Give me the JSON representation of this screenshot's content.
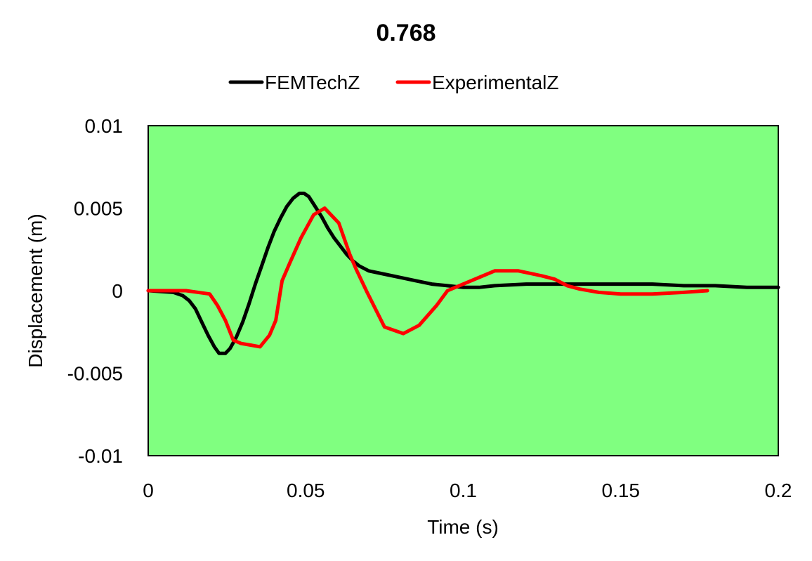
{
  "chart_data": {
    "type": "line",
    "title": "0.768",
    "xlabel": "Time (s)",
    "ylabel": "Displacement (m)",
    "xlim": [
      0,
      0.2
    ],
    "ylim": [
      -0.01,
      0.01
    ],
    "x_ticks": [
      0,
      0.05,
      0.1,
      0.15,
      0.2
    ],
    "x_tick_labels": [
      "0",
      "0.05",
      "0.1",
      "0.15",
      "0.2"
    ],
    "y_ticks": [
      0.01,
      0.005,
      0,
      -0.005,
      -0.01
    ],
    "y_tick_labels": [
      "0.01",
      "0.005",
      "0",
      "-0.005",
      "-0.01"
    ],
    "grid": false,
    "legend_position": "top",
    "plot_background": "#80FF80",
    "series": [
      {
        "name": "FEMTechZ",
        "color": "#000000",
        "points": [
          [
            0,
            0
          ],
          [
            0.008,
            -0.0001
          ],
          [
            0.011,
            -0.0003
          ],
          [
            0.013,
            -0.0006
          ],
          [
            0.015,
            -0.0011
          ],
          [
            0.017,
            -0.0019
          ],
          [
            0.019,
            -0.0027
          ],
          [
            0.021,
            -0.0034
          ],
          [
            0.0225,
            -0.0038
          ],
          [
            0.0245,
            -0.0038
          ],
          [
            0.026,
            -0.0035
          ],
          [
            0.028,
            -0.0028
          ],
          [
            0.03,
            -0.0019
          ],
          [
            0.032,
            -0.0008
          ],
          [
            0.034,
            0.0004
          ],
          [
            0.036,
            0.0015
          ],
          [
            0.038,
            0.0026
          ],
          [
            0.04,
            0.0036
          ],
          [
            0.042,
            0.0044
          ],
          [
            0.044,
            0.0051
          ],
          [
            0.046,
            0.0056
          ],
          [
            0.048,
            0.0059
          ],
          [
            0.0495,
            0.0059
          ],
          [
            0.051,
            0.0057
          ],
          [
            0.053,
            0.0051
          ],
          [
            0.055,
            0.0045
          ],
          [
            0.057,
            0.0038
          ],
          [
            0.059,
            0.0032
          ],
          [
            0.061,
            0.0027
          ],
          [
            0.063,
            0.0022
          ],
          [
            0.065,
            0.0018
          ],
          [
            0.067,
            0.0015
          ],
          [
            0.07,
            0.0012
          ],
          [
            0.075,
            0.001
          ],
          [
            0.08,
            0.0008
          ],
          [
            0.085,
            0.0006
          ],
          [
            0.09,
            0.0004
          ],
          [
            0.095,
            0.0003
          ],
          [
            0.1,
            0.0002
          ],
          [
            0.105,
            0.0002
          ],
          [
            0.11,
            0.0003
          ],
          [
            0.12,
            0.0004
          ],
          [
            0.13,
            0.0004
          ],
          [
            0.14,
            0.0004
          ],
          [
            0.15,
            0.0004
          ],
          [
            0.16,
            0.0004
          ],
          [
            0.17,
            0.0003
          ],
          [
            0.18,
            0.0003
          ],
          [
            0.19,
            0.0002
          ],
          [
            0.2,
            0.0002
          ]
        ]
      },
      {
        "name": "ExperimentalZ",
        "color": "#FF0000",
        "points": [
          [
            0,
            0
          ],
          [
            0.012,
            0
          ],
          [
            0.0195,
            -0.0002
          ],
          [
            0.022,
            -0.0009
          ],
          [
            0.0245,
            -0.0018
          ],
          [
            0.027,
            -0.003
          ],
          [
            0.0295,
            -0.0032
          ],
          [
            0.0325,
            -0.0033
          ],
          [
            0.0355,
            -0.0034
          ],
          [
            0.0385,
            -0.0027
          ],
          [
            0.0405,
            -0.0018
          ],
          [
            0.0425,
            0.0006
          ],
          [
            0.045,
            0.0017
          ],
          [
            0.0485,
            0.0032
          ],
          [
            0.0525,
            0.0046
          ],
          [
            0.056,
            0.005
          ],
          [
            0.0605,
            0.0041
          ],
          [
            0.064,
            0.0022
          ],
          [
            0.066,
            0.0013
          ],
          [
            0.0695,
            -0.0001
          ],
          [
            0.075,
            -0.0022
          ],
          [
            0.081,
            -0.0026
          ],
          [
            0.086,
            -0.0021
          ],
          [
            0.0915,
            -0.0009
          ],
          [
            0.095,
            0
          ],
          [
            0.1,
            0.0004
          ],
          [
            0.105,
            0.0008
          ],
          [
            0.11,
            0.0012
          ],
          [
            0.1175,
            0.0012
          ],
          [
            0.125,
            0.0009
          ],
          [
            0.129,
            0.0007
          ],
          [
            0.133,
            0.0003
          ],
          [
            0.137,
            0.0001
          ],
          [
            0.143,
            -0.0001
          ],
          [
            0.15,
            -0.0002
          ],
          [
            0.16,
            -0.0002
          ],
          [
            0.17,
            -0.0001
          ],
          [
            0.1775,
            0
          ]
        ]
      }
    ]
  }
}
